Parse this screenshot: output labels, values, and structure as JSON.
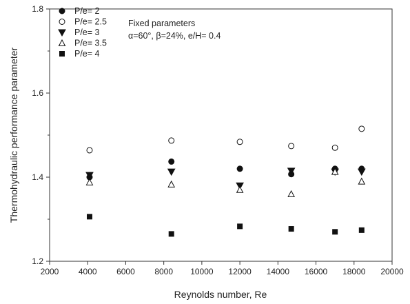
{
  "chart_data": {
    "type": "scatter",
    "xlabel": "Reynolds number, Re",
    "ylabel": "Thermohydraulic performance parameter",
    "xlim": [
      2000,
      20000
    ],
    "ylim": [
      1.2,
      1.8
    ],
    "x_ticks": [
      "2000",
      "4000",
      "6000",
      "8000",
      "10000",
      "12000",
      "14000",
      "16000",
      "18000",
      "20000"
    ],
    "y_ticks": [
      "1.2",
      "1.4",
      "1.6",
      "1.8"
    ],
    "grid": false,
    "legend_position": "top-left",
    "annotation": {
      "title": "Fixed parameters",
      "text": "α=60°, β=24%, e/H= 0.4"
    },
    "series": [
      {
        "name": "P/e= 2",
        "marker": "filled-circle",
        "color": "#111111",
        "x": [
          4100,
          8400,
          12000,
          14700,
          17000,
          18400
        ],
        "y": [
          1.4,
          1.437,
          1.42,
          1.407,
          1.42,
          1.42
        ]
      },
      {
        "name": "P/e= 2.5",
        "marker": "open-circle",
        "color": "#111111",
        "x": [
          4100,
          8400,
          12000,
          14700,
          17000,
          18400
        ],
        "y": [
          1.464,
          1.487,
          1.484,
          1.474,
          1.47,
          1.515
        ]
      },
      {
        "name": "P/e= 3",
        "marker": "filled-triangle-down",
        "color": "#111111",
        "x": [
          4100,
          8400,
          12000,
          14700,
          17000,
          18400
        ],
        "y": [
          1.405,
          1.413,
          1.38,
          1.415,
          1.413,
          1.413
        ]
      },
      {
        "name": "P/e= 3.5",
        "marker": "open-triangle-up",
        "color": "#111111",
        "x": [
          4100,
          8400,
          12000,
          14700,
          17000,
          18400
        ],
        "y": [
          1.388,
          1.383,
          1.37,
          1.36,
          1.413,
          1.39
        ]
      },
      {
        "name": "P/e= 4",
        "marker": "filled-square",
        "color": "#111111",
        "x": [
          4100,
          8400,
          12000,
          14700,
          17000,
          18400
        ],
        "y": [
          1.306,
          1.265,
          1.283,
          1.277,
          1.27,
          1.274
        ]
      }
    ]
  }
}
